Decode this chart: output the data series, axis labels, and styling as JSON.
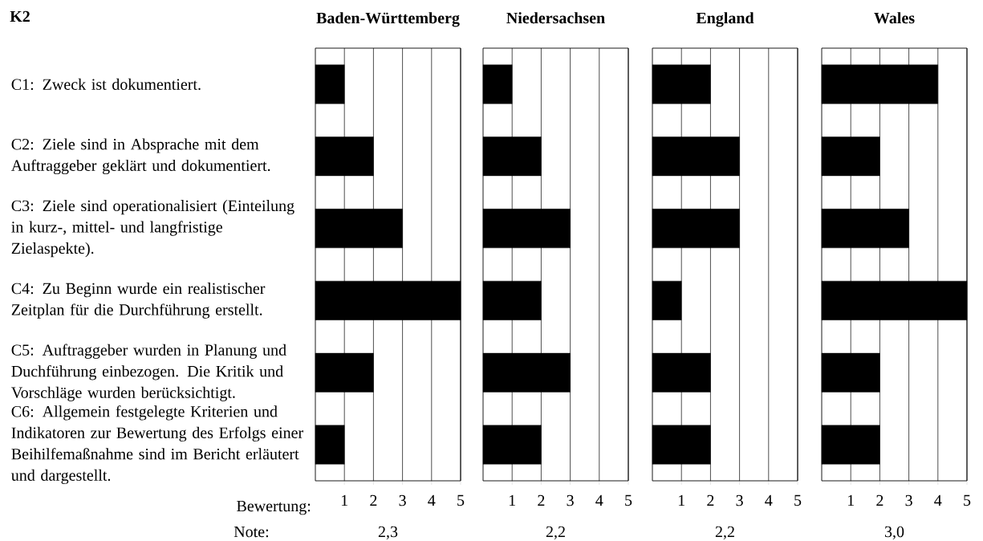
{
  "chart_data": [
    {
      "type": "bar",
      "orientation": "horizontal",
      "title": "Baden-Württemberg",
      "xlabel": "Bewertung:",
      "annotations": [
        "K2",
        "Note:",
        "2,3"
      ],
      "categories": [
        "C1: Zweck ist dokumentiert.",
        "C2: Ziele sind in Absprache mit dem Auftraggeber geklärt und dokumentiert.",
        "C3: Ziele sind operationalisiert (Einteilung in kurz-, mittel- und langfristige Zielaspekte).",
        "C4: Zu Beginn wurde ein realistischer Zeitplan für die Durchführung erstellt.",
        "C5: Auftraggeber wurden in Planung und Duchführung einbezogen. Die Kritik und Vorschläge wurden berücksichtigt.",
        "C6: Allgemein festgelegte Kriterien und Indikatoren zur Bewertung des Erfolgs einer Beihilfemaßnahme sind im Bericht erläutert und dargestellt."
      ],
      "values": [
        1,
        2,
        3,
        5,
        2,
        1
      ],
      "color": "#000000",
      "xlim": [
        0,
        5
      ],
      "xticks": [
        1,
        2,
        3,
        4,
        5
      ],
      "grid": "x"
    },
    {
      "type": "bar",
      "orientation": "horizontal",
      "title": "Niedersachsen",
      "annotations": [
        "2,2"
      ],
      "tick_labels": "x",
      "categories": [
        null,
        null,
        null,
        null,
        null,
        null
      ],
      "values": [
        1,
        2,
        3,
        2,
        3,
        2
      ],
      "color": "#000000",
      "xlim": [
        0,
        5
      ],
      "xticks": [
        1,
        2,
        3,
        4,
        5
      ],
      "grid": "x"
    },
    {
      "type": "bar",
      "orientation": "horizontal",
      "title": "England",
      "annotations": [
        "2,2"
      ],
      "tick_labels": "x",
      "categories": [
        null,
        null,
        null,
        null,
        null,
        null
      ],
      "values": [
        2,
        3,
        3,
        1,
        2,
        2
      ],
      "color": "#000000",
      "xlim": [
        0,
        5
      ],
      "xticks": [
        1,
        2,
        3,
        4,
        5
      ],
      "grid": "x"
    },
    {
      "type": "bar",
      "orientation": "horizontal",
      "title": "Wales",
      "annotations": [
        "3,0"
      ],
      "tick_labels": "x",
      "categories": [
        null,
        null,
        null,
        null,
        null,
        null
      ],
      "values": [
        4,
        2,
        3,
        5,
        2,
        2
      ],
      "color": "#000000",
      "xlim": [
        0,
        5
      ],
      "xticks": [
        1,
        2,
        3,
        4,
        5
      ],
      "grid": "x"
    }
  ]
}
